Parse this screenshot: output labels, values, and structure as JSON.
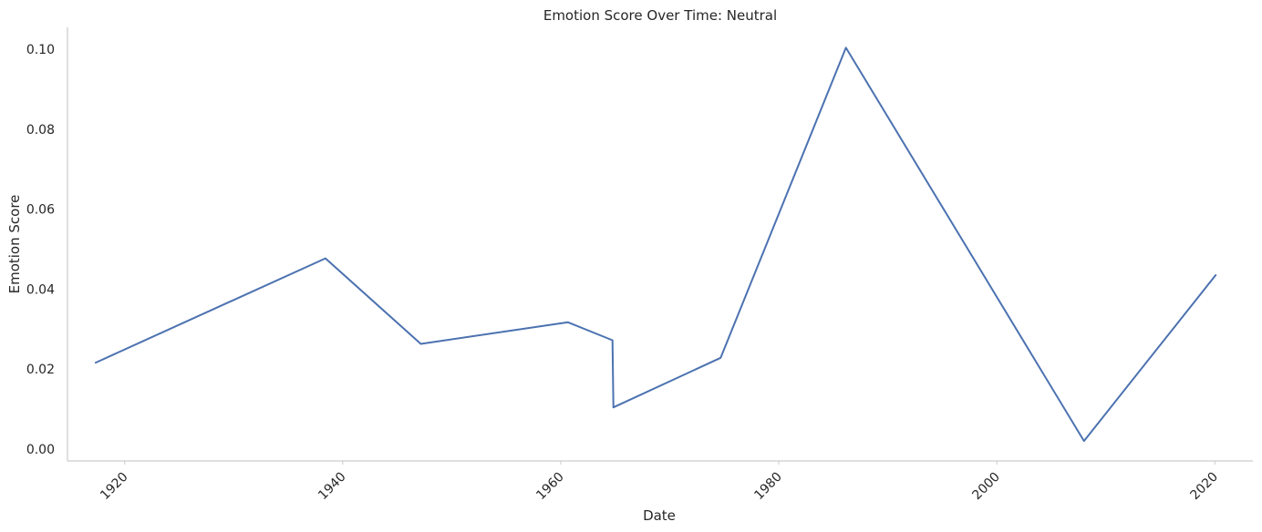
{
  "chart_data": {
    "type": "line",
    "title": "Emotion Score Over Time: Neutral",
    "xlabel": "Date",
    "ylabel": "Emotion Score",
    "x_axis_type": "date",
    "xlim": [
      "1914-10-01",
      "2023-07-01"
    ],
    "ylim": [
      -0.003,
      0.1055
    ],
    "x_ticks": [
      "1920",
      "1940",
      "1960",
      "1980",
      "2000",
      "2020"
    ],
    "x_tick_rotation": 45,
    "y_ticks": [
      "0.00",
      "0.02",
      "0.04",
      "0.06",
      "0.08",
      "0.10"
    ],
    "grid": false,
    "legend": "none",
    "colors": {
      "line": "#4c72b0",
      "text": "#262626",
      "spine": "#cccccc"
    },
    "series": [
      {
        "x": [
          "1917-05-01",
          "1938-06-01",
          "1947-03-01",
          "1960-09-01",
          "1964-10-01",
          "1964-11-01",
          "1974-09-01",
          "1986-03-01",
          "2008-01-01",
          "2020-02-01"
        ],
        "y": [
          0.0216,
          0.0477,
          0.0263,
          0.0317,
          0.0272,
          0.0104,
          0.0228,
          0.1004,
          0.002,
          0.0435
        ]
      }
    ]
  }
}
